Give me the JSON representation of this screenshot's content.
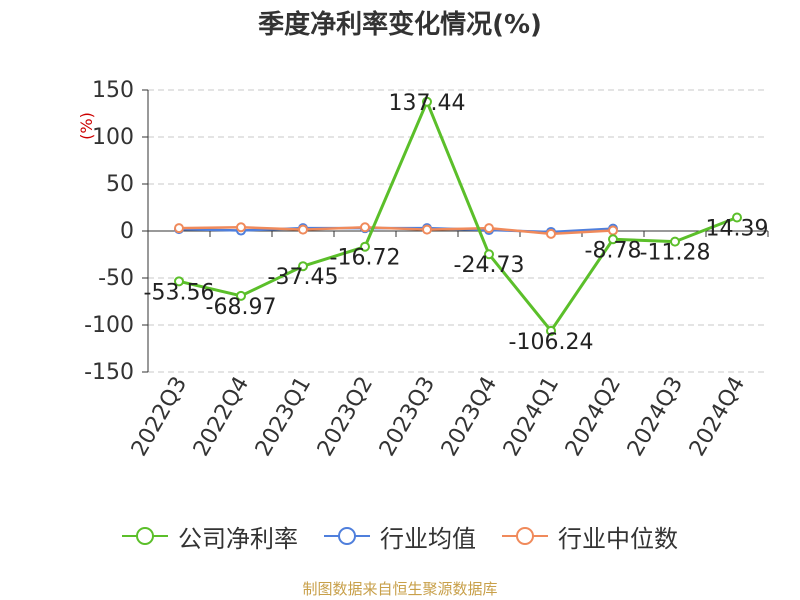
{
  "title": "季度净利率变化情况(%)",
  "source": "制图数据来自恒生聚源数据库",
  "colors": {
    "company": "#5bbf2a",
    "industry_avg": "#4f7fdc",
    "industry_median": "#f08a5b",
    "grid": "#c8c8c8",
    "axis": "#333333",
    "unit": "#cc0000"
  },
  "chart_data": {
    "type": "line",
    "title": "季度净利率变化情况(%)",
    "ylabel": "(%)",
    "xlabel": "",
    "ylim": [
      -150,
      150
    ],
    "yticks": [
      150,
      100,
      50,
      0,
      -50,
      -100,
      -150
    ],
    "grid": true,
    "legend_position": "bottom",
    "categories": [
      "2022Q3",
      "2022Q4",
      "2023Q1",
      "2023Q2",
      "2023Q3",
      "2023Q4",
      "2024Q1",
      "2024Q2",
      "2024Q3",
      "2024Q4"
    ],
    "series": [
      {
        "name": "公司净利率",
        "values": [
          -53.56,
          -68.97,
          -37.45,
          -16.72,
          137.44,
          -24.73,
          -106.24,
          -8.78,
          -11.28,
          14.39
        ],
        "labels": [
          "-53.56",
          "-68.97",
          "-37.45",
          "-16.72",
          "137.44",
          "-24.73",
          "-106.24",
          "-8.78",
          "-11.28",
          "14.39"
        ]
      },
      {
        "name": "行业均值",
        "values": [
          2,
          0.5,
          3,
          3,
          3,
          1,
          -1,
          2.5,
          null,
          null
        ],
        "labels": []
      },
      {
        "name": "行业中位数",
        "values": [
          3,
          4,
          1.5,
          4,
          1.5,
          3,
          -3,
          0.5,
          null,
          null
        ],
        "labels": []
      }
    ]
  }
}
